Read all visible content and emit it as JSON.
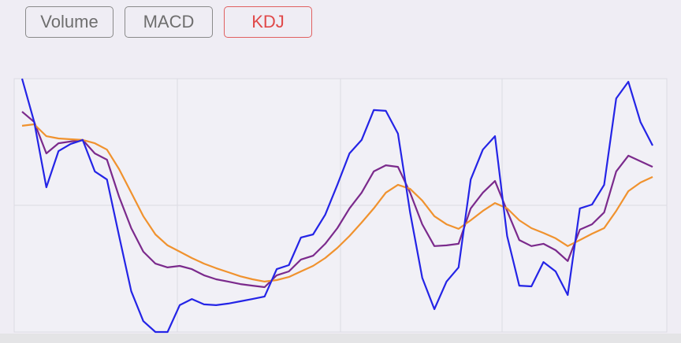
{
  "tabs": {
    "items": [
      "Volume",
      "MACD",
      "KDJ"
    ],
    "selected": 2
  },
  "chart_data": {
    "type": "line",
    "ylim": [
      0,
      100
    ],
    "yticks": [
      50
    ],
    "grid": true,
    "series": [
      {
        "color": "#7b2a8c",
        "values": [
          87.0,
          82.9,
          70.5,
          74.5,
          75.2,
          75.8,
          70.5,
          68.0,
          53.4,
          41.0,
          31.7,
          27.0,
          25.5,
          26.1,
          24.8,
          22.4,
          20.8,
          19.9,
          18.9,
          18.3,
          17.7,
          22.4,
          23.9,
          28.6,
          30.1,
          34.8,
          41.0,
          48.8,
          55.0,
          63.4,
          65.8,
          65.2,
          55.0,
          42.5,
          33.9,
          34.2,
          34.8,
          48.8,
          55.0,
          59.6,
          47.8,
          36.3,
          33.9,
          34.8,
          32.3,
          28.0,
          40.4,
          42.5,
          47.2,
          63.4,
          69.6,
          67.4,
          65.2
        ]
      },
      {
        "color": "#f0922e",
        "values": [
          81.4,
          82.0,
          77.3,
          76.4,
          76.1,
          75.8,
          74.5,
          72.0,
          64.3,
          55.0,
          45.7,
          38.5,
          34.2,
          31.7,
          29.2,
          27.0,
          25.2,
          23.6,
          22.0,
          20.8,
          19.9,
          20.5,
          21.7,
          23.9,
          26.1,
          29.2,
          33.2,
          37.9,
          43.2,
          48.8,
          55.0,
          58.1,
          56.5,
          51.9,
          45.7,
          42.5,
          40.7,
          44.1,
          47.8,
          50.9,
          48.8,
          44.1,
          41.0,
          39.1,
          37.0,
          33.9,
          36.3,
          38.8,
          41.0,
          47.8,
          55.6,
          59.0,
          61.2
        ]
      },
      {
        "color": "#2424e6",
        "values": [
          100,
          82.9,
          57.1,
          71.4,
          74.2,
          75.8,
          63.4,
          60.2,
          37.9,
          16.1,
          4.3,
          0,
          0,
          10.6,
          13.0,
          10.9,
          10.6,
          11.2,
          12.1,
          13.0,
          14.0,
          24.8,
          26.4,
          37.3,
          38.5,
          46.3,
          58.1,
          70.5,
          75.8,
          87.6,
          87.3,
          78.3,
          47.2,
          21.4,
          9.0,
          19.9,
          25.5,
          60.2,
          72.0,
          77.3,
          37.9,
          18.3,
          18.0,
          27.6,
          23.9,
          14.6,
          48.8,
          50.3,
          58.1,
          92.2,
          98.8,
          82.9,
          73.6
        ]
      }
    ]
  }
}
